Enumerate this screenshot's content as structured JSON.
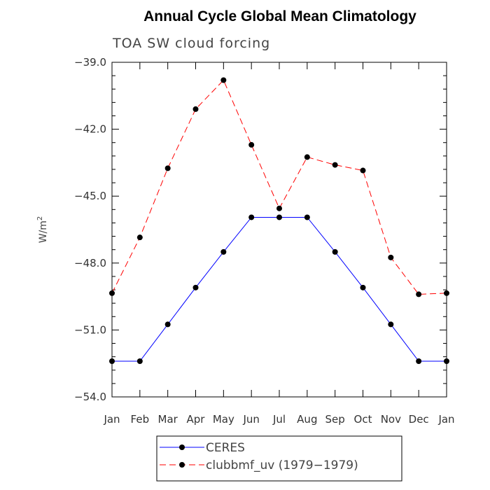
{
  "chart_data": {
    "type": "line",
    "title": "Annual Cycle Global Mean Climatology",
    "subtitle": "TOA SW cloud forcing",
    "ylabel": "W/m",
    "ylabel_sup": "2",
    "xlabel": "",
    "categories": [
      "Jan",
      "Feb",
      "Mar",
      "Apr",
      "May",
      "Jun",
      "Jul",
      "Aug",
      "Sep",
      "Oct",
      "Nov",
      "Dec",
      "Jan"
    ],
    "ylim": [
      -54.0,
      -39.0
    ],
    "yticks": [
      -39.0,
      -42.0,
      -45.0,
      -48.0,
      -51.0,
      -54.0
    ],
    "ytick_labels": [
      "−39.0",
      "−42.0",
      "−45.0",
      "−48.0",
      "−51.0",
      "−54.0"
    ],
    "series": [
      {
        "name": "CERES",
        "color": "#0000ff",
        "dash": "solid",
        "values": [
          -52.4,
          -52.4,
          -50.75,
          -49.1,
          -47.5,
          -45.95,
          -45.95,
          -45.95,
          -47.5,
          -49.1,
          -50.75,
          -52.4,
          -52.4
        ]
      },
      {
        "name": "clubbmf_uv (1979−1979)",
        "color": "#ff0000",
        "dash": "dashed",
        "values": [
          -49.35,
          -46.85,
          -43.75,
          -41.1,
          -39.8,
          -42.7,
          -45.55,
          -43.25,
          -43.6,
          -43.85,
          -47.75,
          -49.4,
          -49.35
        ]
      }
    ]
  }
}
